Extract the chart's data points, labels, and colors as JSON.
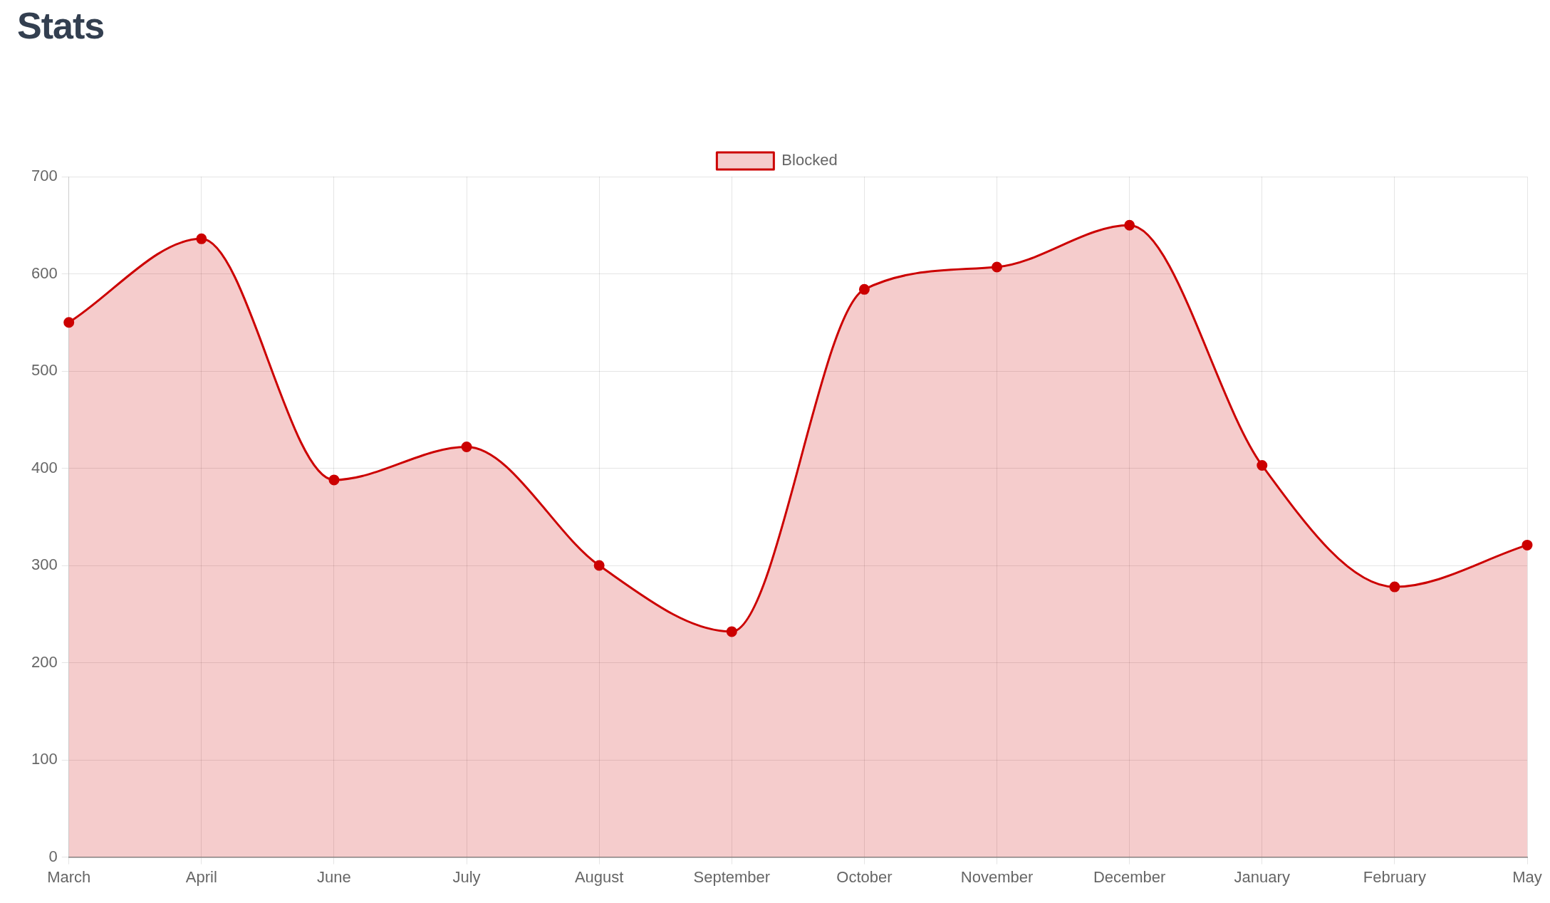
{
  "chart_data": {
    "type": "area",
    "title": "Stats",
    "categories": [
      "March",
      "April",
      "June",
      "July",
      "August",
      "September",
      "October",
      "November",
      "December",
      "January",
      "February",
      "May"
    ],
    "series": [
      {
        "name": "Blocked",
        "color": "#cc0000",
        "values": [
          550,
          636,
          388,
          422,
          300,
          232,
          584,
          607,
          650,
          403,
          278,
          321
        ]
      }
    ],
    "ylim": [
      0,
      700
    ],
    "yticks": [
      0,
      100,
      200,
      300,
      400,
      500,
      600,
      700
    ],
    "grid": true,
    "legend": "top",
    "marker": "circle"
  }
}
